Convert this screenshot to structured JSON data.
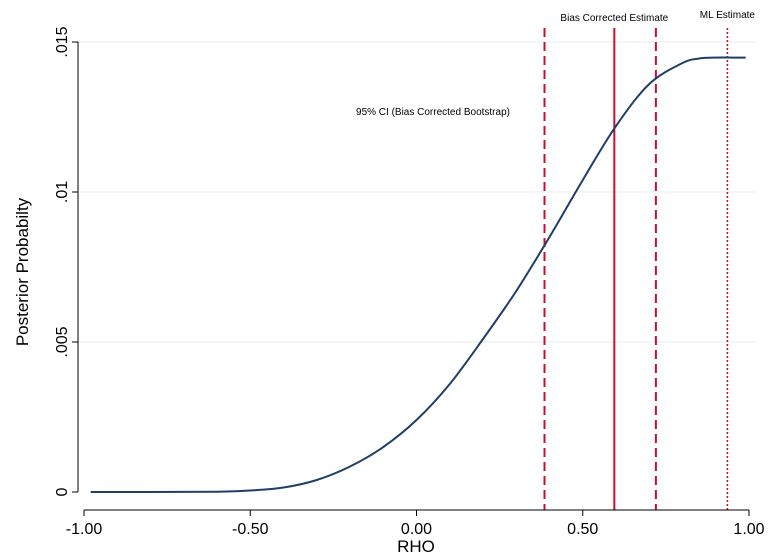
{
  "chart_data": {
    "type": "line",
    "title": "",
    "xlabel": "RHO",
    "ylabel": "Posterior Probabilty",
    "xlim": [
      -1.0,
      1.0
    ],
    "ylim": [
      0,
      0.015
    ],
    "grid": true,
    "x_ticks": [
      {
        "value": -1.0,
        "label": "-1.00"
      },
      {
        "value": -0.5,
        "label": "-0.50"
      },
      {
        "value": 0.0,
        "label": "0.00"
      },
      {
        "value": 0.5,
        "label": "0.50"
      },
      {
        "value": 1.0,
        "label": "1.00"
      }
    ],
    "y_ticks": [
      {
        "value": 0,
        "label": "0"
      },
      {
        "value": 0.005,
        "label": ".005"
      },
      {
        "value": 0.01,
        "label": ".01"
      },
      {
        "value": 0.015,
        "label": ".015"
      }
    ],
    "series": [
      {
        "color": "#1f3f66",
        "x": [
          -0.98,
          -0.8,
          -0.6,
          -0.5,
          -0.4,
          -0.3,
          -0.2,
          -0.1,
          0.0,
          0.1,
          0.2,
          0.3,
          0.4,
          0.5,
          0.6,
          0.7,
          0.8,
          0.85,
          0.9,
          0.95,
          0.99
        ],
        "y": [
          0.0,
          0.0,
          1e-05,
          5e-05,
          0.00015,
          0.0004,
          0.00085,
          0.0015,
          0.0024,
          0.0036,
          0.0051,
          0.0067,
          0.0085,
          0.0104,
          0.0122,
          0.0136,
          0.0143,
          0.01445,
          0.01448,
          0.01448,
          0.01448
        ]
      }
    ],
    "vlines": [
      {
        "x": 0.385,
        "style": "dashed",
        "color": "#c8102e"
      },
      {
        "x": 0.595,
        "style": "solid",
        "color": "#c8102e"
      },
      {
        "x": 0.72,
        "style": "dashed",
        "color": "#c8102e"
      },
      {
        "x": 0.935,
        "style": "dotted",
        "color": "#c8102e"
      }
    ],
    "annotations": [
      {
        "text": "Bias Corrected Estimate"
      },
      {
        "text": "ML Estimate"
      },
      {
        "text": "95% CI (Bias Corrected Bootstrap)"
      }
    ],
    "grid_color": "#e6ecef",
    "axis_color": "#000000"
  }
}
